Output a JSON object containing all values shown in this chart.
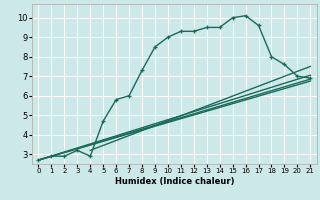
{
  "xlabel": "Humidex (Indice chaleur)",
  "bg_color": "#cce8e8",
  "line_color": "#1a6b5a",
  "grid_color": "#ffffff",
  "xlim": [
    -0.5,
    21.5
  ],
  "ylim": [
    2.5,
    10.7
  ],
  "xticks": [
    0,
    1,
    2,
    3,
    4,
    5,
    6,
    7,
    8,
    9,
    10,
    11,
    12,
    13,
    14,
    15,
    16,
    17,
    18,
    19,
    20,
    21
  ],
  "yticks": [
    3,
    4,
    5,
    6,
    7,
    8,
    9,
    10
  ],
  "curve1_x": [
    0,
    1,
    2,
    3,
    4,
    5,
    6,
    7,
    8,
    9,
    10,
    11,
    12,
    13,
    14,
    15,
    16,
    17,
    18,
    19,
    20,
    21
  ],
  "curve1_y": [
    2.7,
    2.9,
    2.9,
    3.2,
    2.9,
    4.7,
    5.8,
    6.0,
    7.3,
    8.5,
    9.0,
    9.3,
    9.3,
    9.5,
    9.5,
    10.0,
    10.1,
    9.6,
    8.0,
    7.6,
    7.0,
    6.9
  ],
  "line2_x": [
    0,
    21
  ],
  "line2_y": [
    2.7,
    7.05
  ],
  "line3_x": [
    0,
    21
  ],
  "line3_y": [
    2.7,
    6.75
  ],
  "line4_x": [
    0,
    21
  ],
  "line4_y": [
    2.7,
    6.85
  ],
  "line5_x": [
    4,
    21
  ],
  "line5_y": [
    3.2,
    7.5
  ]
}
